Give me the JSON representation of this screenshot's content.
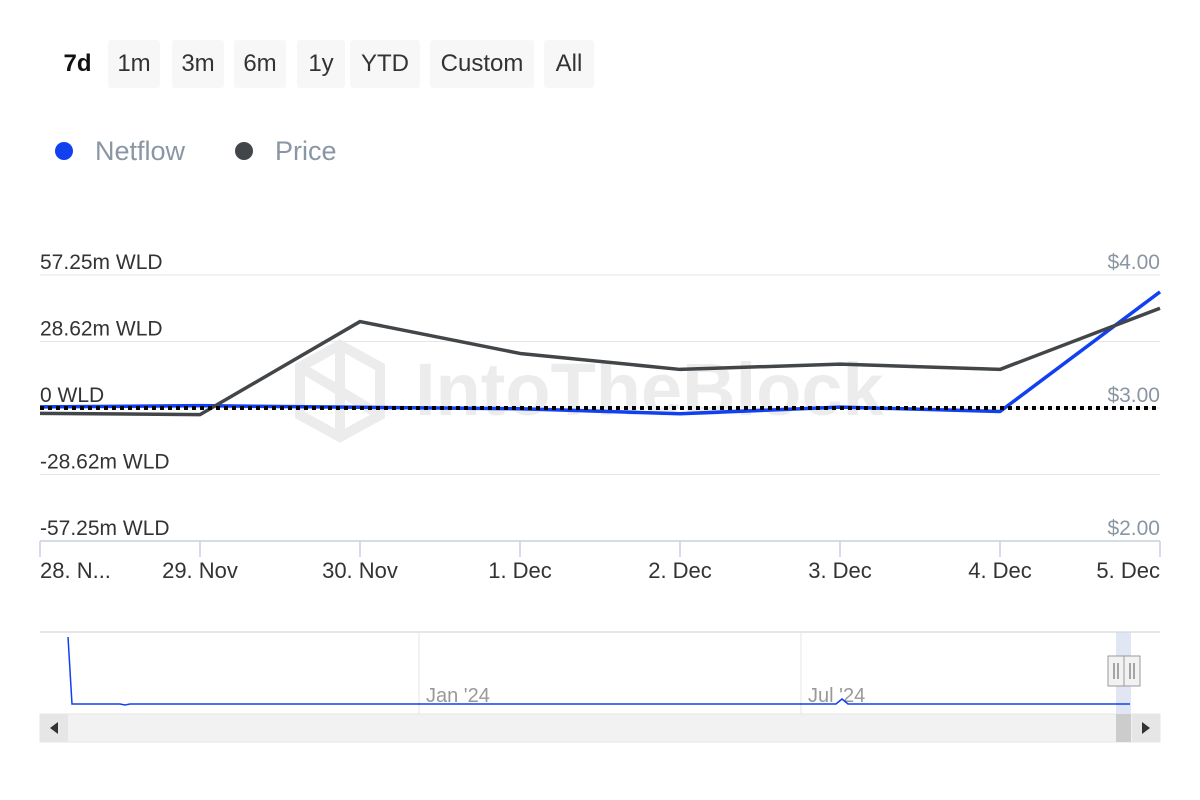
{
  "range_buttons": [
    "7d",
    "1m",
    "3m",
    "6m",
    "1y",
    "YTD",
    "Custom",
    "All"
  ],
  "active_range": "7d",
  "legend": [
    {
      "label": "Netflow",
      "color": "#1040f0"
    },
    {
      "label": "Price",
      "color": "#434649"
    }
  ],
  "watermark": "IntoTheBlock",
  "colors": {
    "netflow": "#1040f0",
    "price": "#434649",
    "zero_line": "#000000",
    "grid": "#e6e6e6"
  },
  "chart_data": {
    "type": "line",
    "x": [
      "28. N...",
      "29. Nov",
      "30. Nov",
      "1. Dec",
      "2. Dec",
      "3. Dec",
      "4. Dec",
      "5. Dec"
    ],
    "series": [
      {
        "name": "Netflow",
        "axis": "left",
        "values": [
          0.5,
          1.0,
          0.3,
          -0.3,
          -2.5,
          0.4,
          -1.5,
          50.0
        ]
      },
      {
        "name": "Price",
        "axis": "right",
        "values": [
          2.96,
          2.95,
          3.65,
          3.41,
          3.29,
          3.33,
          3.29,
          3.75
        ]
      }
    ],
    "y_left": {
      "ticks": [
        "57.25m WLD",
        "28.62m WLD",
        "0 WLD",
        "-28.62m WLD",
        "-57.25m WLD"
      ],
      "range": [
        -57.25,
        57.25
      ]
    },
    "y_right": {
      "ticks": [
        "$4.00",
        "$3.00",
        "$2.00"
      ],
      "range": [
        2.0,
        4.0
      ]
    },
    "zero_line": "dotted",
    "grid": true,
    "legend_position": "top-left",
    "navigator": {
      "labels": [
        "Jan '24",
        "Jul '24"
      ]
    }
  }
}
